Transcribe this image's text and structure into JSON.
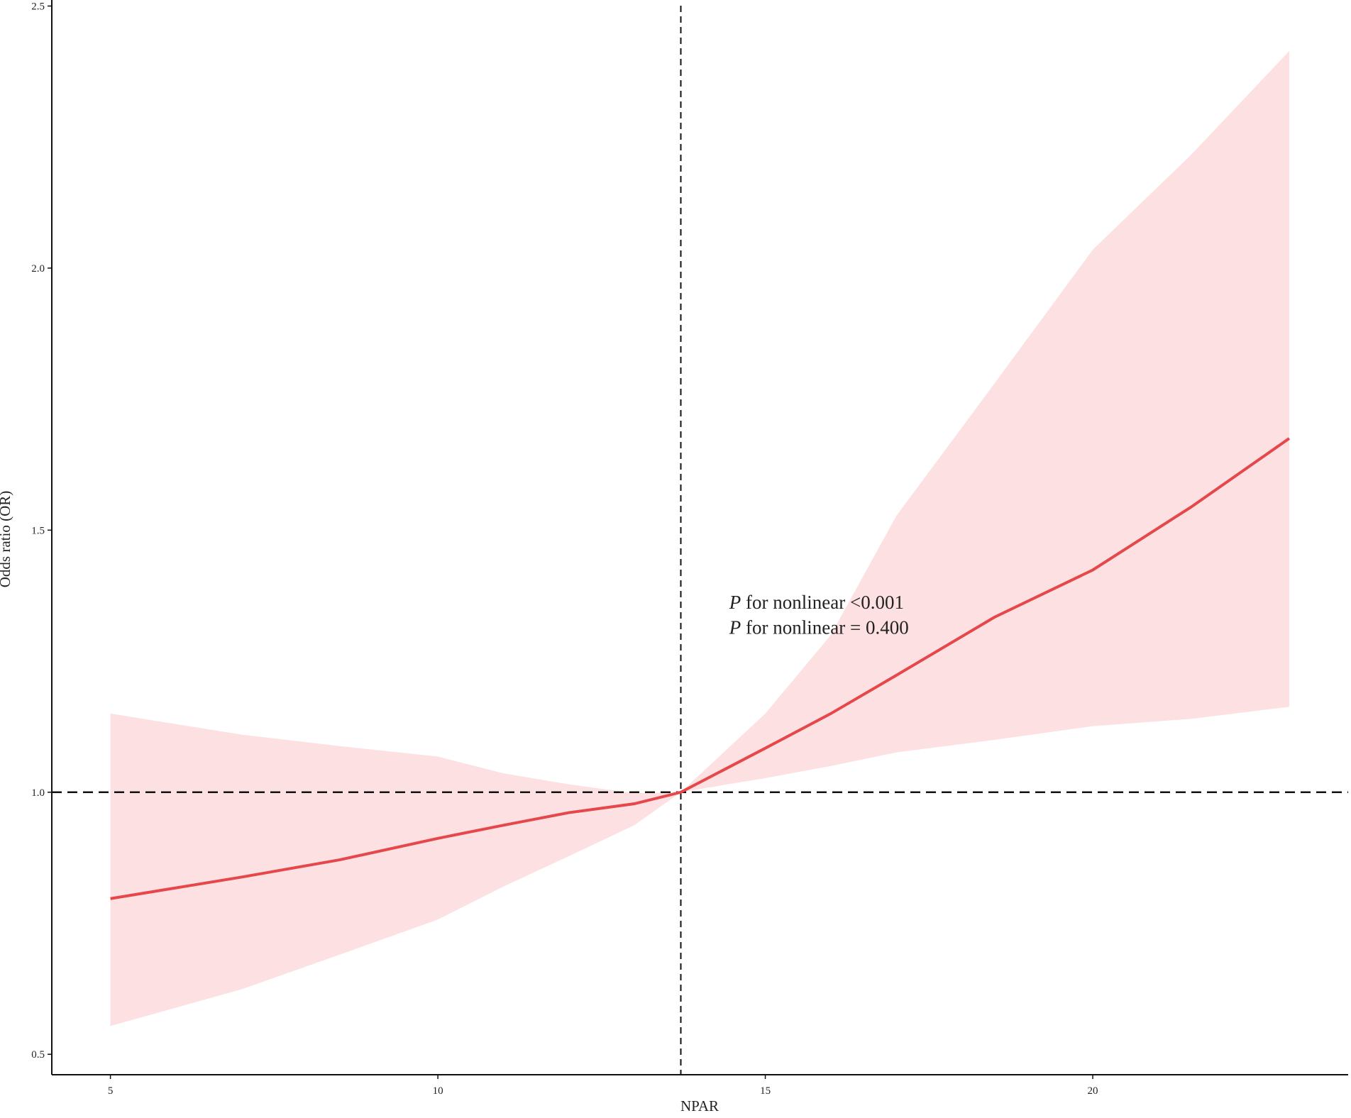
{
  "chart_data": {
    "type": "line",
    "x_label": "NPAR",
    "y_label": "Odds ratio (OR)",
    "x": [
      5,
      7,
      8.5,
      10,
      11,
      12,
      13,
      13.71,
      15,
      16,
      17,
      18.5,
      20,
      21.5,
      23
    ],
    "series": [
      {
        "color": "#e5474b",
        "values": [
          0.797,
          0.838,
          0.871,
          0.912,
          0.937,
          0.961,
          0.978,
          1.0,
          1.084,
          1.15,
          1.223,
          1.334,
          1.424,
          1.544,
          1.675
        ],
        "upper": [
          1.15,
          1.11,
          1.088,
          1.068,
          1.036,
          1.015,
          0.998,
          1.0,
          1.15,
          1.3,
          1.527,
          1.78,
          2.035,
          2.216,
          2.414
        ],
        "lower": [
          0.554,
          0.624,
          0.69,
          0.757,
          0.82,
          0.878,
          0.937,
          1.0,
          1.027,
          1.05,
          1.076,
          1.1,
          1.126,
          1.14,
          1.163
        ],
        "band_color": "#fde0e1"
      }
    ],
    "xlim": [
      4.105,
      23.9
    ],
    "ylim": [
      0.461,
      2.5115
    ],
    "xticks": [
      5,
      10,
      15,
      20
    ],
    "yticks": [
      {
        "value": 0.5,
        "label": "0.5"
      },
      {
        "value": 1.0,
        "label": "1.0"
      },
      {
        "value": 1.5,
        "label": "1.5"
      },
      {
        "value": 2.0,
        "label": "2.0"
      },
      {
        "value": 2.5,
        "label": "2.5"
      }
    ],
    "vline": 13.71,
    "hline": 1,
    "annotations": [
      {
        "text": "P for nonlinear <0.001",
        "x": 14.45,
        "y": 1.35
      },
      {
        "text": "P for nonlinear = 0.400",
        "x": 14.45,
        "y": 1.302
      }
    ]
  }
}
